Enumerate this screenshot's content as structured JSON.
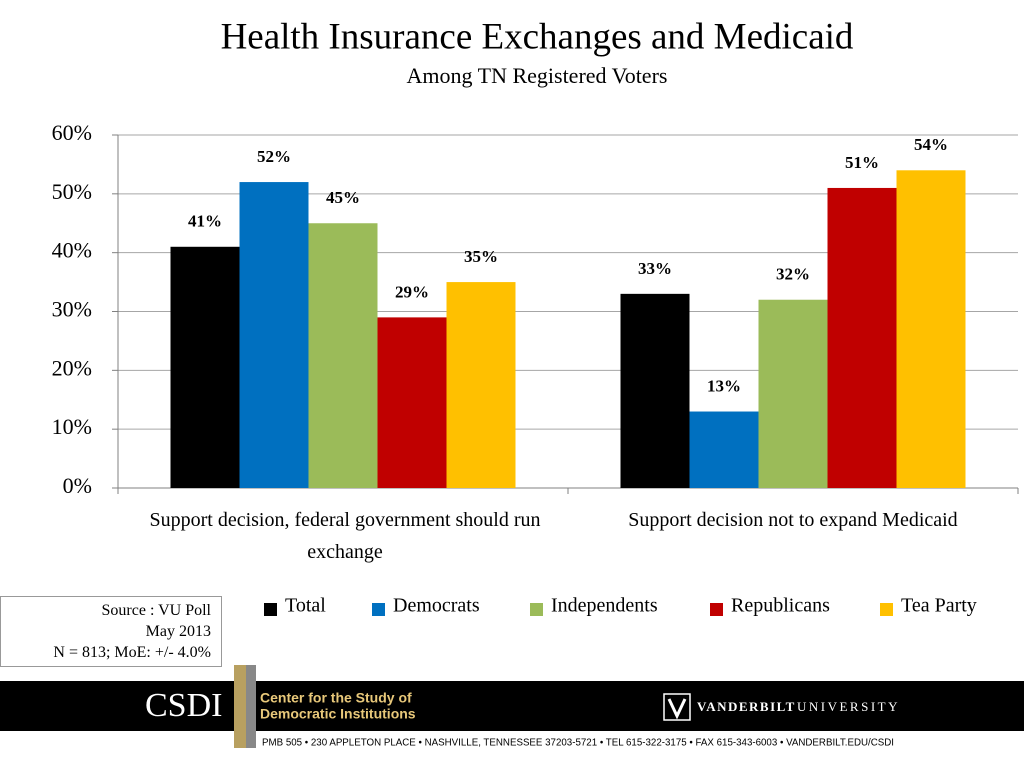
{
  "chart_data": {
    "type": "bar",
    "title": "Health Insurance Exchanges and Medicaid",
    "subtitle": "Among TN Registered Voters",
    "categories": [
      "Support decision, federal government should run exchange",
      "Support decision not to expand Medicaid"
    ],
    "series": [
      {
        "name": "Total",
        "color": "#000000",
        "values": [
          41,
          33
        ],
        "value_labels": [
          "41%",
          "33%"
        ]
      },
      {
        "name": "Democrats",
        "color": "#0070c0",
        "values": [
          52,
          13
        ],
        "value_labels": [
          "52%",
          "13%"
        ]
      },
      {
        "name": "Independents",
        "color": "#9bbb59",
        "values": [
          45,
          32
        ],
        "value_labels": [
          "45%",
          "32%"
        ]
      },
      {
        "name": "Republicans",
        "color": "#c00000",
        "values": [
          29,
          51
        ],
        "value_labels": [
          "29%",
          "51%"
        ]
      },
      {
        "name": "Tea Party",
        "color": "#ffc000",
        "values": [
          35,
          54
        ],
        "value_labels": [
          "35%",
          "54%"
        ]
      }
    ],
    "ylim": [
      0,
      60
    ],
    "yticks": [
      {
        "value": 0,
        "label": "0%"
      },
      {
        "value": 10,
        "label": "10%"
      },
      {
        "value": 20,
        "label": "20%"
      },
      {
        "value": 30,
        "label": "30%"
      },
      {
        "value": 40,
        "label": "40%"
      },
      {
        "value": 50,
        "label": "50%"
      },
      {
        "value": 60,
        "label": "60%"
      }
    ],
    "grid": true,
    "legend": "bottom"
  },
  "source": {
    "lines": [
      "Source : VU Poll",
      "May 2013",
      "N = 813; MoE: +/- 4.0%"
    ]
  },
  "footer": {
    "logo": "CSDI",
    "center_name": [
      "Center for the Study of",
      "Democratic Institutions"
    ],
    "university": [
      "VANDERBILT",
      "UNIVERSITY"
    ],
    "address": "PMB 505 • 230 APPLETON PLACE • NASHVILLE, TENNESSEE 37203-5721 • TEL 615-322-3175 • FAX 615-343-6003 • VANDERBILT.EDU/CSDI"
  }
}
